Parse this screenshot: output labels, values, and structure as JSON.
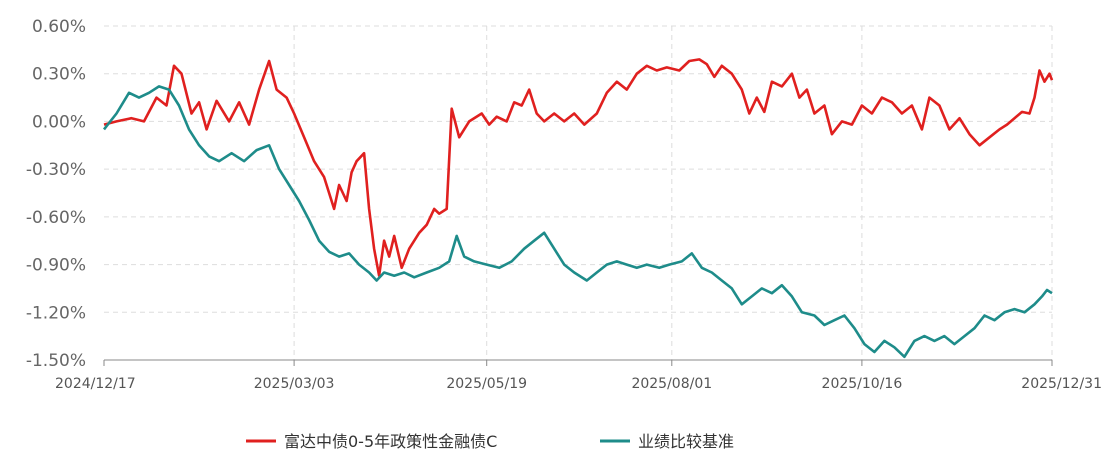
{
  "chart_data": {
    "type": "line",
    "title": "",
    "xlabel": "",
    "ylabel": "",
    "x_ticks": [
      "2024/12/17",
      "2025/03/03",
      "2025/05/19",
      "2025/08/01",
      "2025/10/16",
      "2025/12/31"
    ],
    "y_ticks": [
      "0.60%",
      "0.30%",
      "0.00%",
      "-0.30%",
      "-0.60%",
      "-0.90%",
      "-1.20%",
      "-1.50%"
    ],
    "y_tick_values": [
      0.6,
      0.3,
      0.0,
      -0.3,
      -0.6,
      -0.9,
      -1.2,
      -1.5
    ],
    "ylim": [
      -1.5,
      0.6
    ],
    "x_range": [
      "2024-12-17",
      "2025-12-31"
    ],
    "grid": true,
    "legend_position": "bottom",
    "series": [
      {
        "name": "富达中债0-5年政策性金融债C",
        "color": "#e0201f",
        "points": [
          [
            "2024-12-17",
            -0.02
          ],
          [
            "2024-12-22",
            0.0
          ],
          [
            "2024-12-28",
            0.02
          ],
          [
            "2025-01-02",
            0.0
          ],
          [
            "2025-01-07",
            0.15
          ],
          [
            "2025-01-11",
            0.1
          ],
          [
            "2025-01-14",
            0.35
          ],
          [
            "2025-01-17",
            0.3
          ],
          [
            "2025-01-21",
            0.05
          ],
          [
            "2025-01-24",
            0.12
          ],
          [
            "2025-01-27",
            -0.05
          ],
          [
            "2025-01-31",
            0.13
          ],
          [
            "2025-02-05",
            0.0
          ],
          [
            "2025-02-09",
            0.12
          ],
          [
            "2025-02-13",
            -0.02
          ],
          [
            "2025-02-17",
            0.2
          ],
          [
            "2025-02-21",
            0.38
          ],
          [
            "2025-02-24",
            0.2
          ],
          [
            "2025-02-28",
            0.15
          ],
          [
            "2025-03-03",
            0.05
          ],
          [
            "2025-03-07",
            -0.1
          ],
          [
            "2025-03-11",
            -0.25
          ],
          [
            "2025-03-15",
            -0.35
          ],
          [
            "2025-03-19",
            -0.55
          ],
          [
            "2025-03-21",
            -0.4
          ],
          [
            "2025-03-24",
            -0.5
          ],
          [
            "2025-03-26",
            -0.32
          ],
          [
            "2025-03-28",
            -0.25
          ],
          [
            "2025-03-31",
            -0.2
          ],
          [
            "2025-04-02",
            -0.55
          ],
          [
            "2025-04-04",
            -0.8
          ],
          [
            "2025-04-06",
            -0.97
          ],
          [
            "2025-04-08",
            -0.75
          ],
          [
            "2025-04-10",
            -0.85
          ],
          [
            "2025-04-12",
            -0.72
          ],
          [
            "2025-04-15",
            -0.92
          ],
          [
            "2025-04-18",
            -0.8
          ],
          [
            "2025-04-22",
            -0.7
          ],
          [
            "2025-04-25",
            -0.65
          ],
          [
            "2025-04-28",
            -0.55
          ],
          [
            "2025-04-30",
            -0.58
          ],
          [
            "2025-05-03",
            -0.55
          ],
          [
            "2025-05-05",
            0.08
          ],
          [
            "2025-05-08",
            -0.1
          ],
          [
            "2025-05-12",
            0.0
          ],
          [
            "2025-05-17",
            0.05
          ],
          [
            "2025-05-20",
            -0.02
          ],
          [
            "2025-05-23",
            0.03
          ],
          [
            "2025-05-27",
            0.0
          ],
          [
            "2025-05-30",
            0.12
          ],
          [
            "2025-06-02",
            0.1
          ],
          [
            "2025-06-05",
            0.2
          ],
          [
            "2025-06-08",
            0.05
          ],
          [
            "2025-06-11",
            0.0
          ],
          [
            "2025-06-15",
            0.05
          ],
          [
            "2025-06-19",
            0.0
          ],
          [
            "2025-06-23",
            0.05
          ],
          [
            "2025-06-27",
            -0.02
          ],
          [
            "2025-07-02",
            0.05
          ],
          [
            "2025-07-06",
            0.18
          ],
          [
            "2025-07-10",
            0.25
          ],
          [
            "2025-07-14",
            0.2
          ],
          [
            "2025-07-18",
            0.3
          ],
          [
            "2025-07-22",
            0.35
          ],
          [
            "2025-07-26",
            0.32
          ],
          [
            "2025-07-30",
            0.34
          ],
          [
            "2025-08-04",
            0.32
          ],
          [
            "2025-08-08",
            0.38
          ],
          [
            "2025-08-12",
            0.39
          ],
          [
            "2025-08-15",
            0.36
          ],
          [
            "2025-08-18",
            0.28
          ],
          [
            "2025-08-21",
            0.35
          ],
          [
            "2025-08-25",
            0.3
          ],
          [
            "2025-08-29",
            0.2
          ],
          [
            "2025-09-01",
            0.05
          ],
          [
            "2025-09-04",
            0.15
          ],
          [
            "2025-09-07",
            0.06
          ],
          [
            "2025-09-10",
            0.25
          ],
          [
            "2025-09-14",
            0.22
          ],
          [
            "2025-09-18",
            0.3
          ],
          [
            "2025-09-21",
            0.15
          ],
          [
            "2025-09-24",
            0.2
          ],
          [
            "2025-09-27",
            0.05
          ],
          [
            "2025-10-01",
            0.1
          ],
          [
            "2025-10-04",
            -0.08
          ],
          [
            "2025-10-08",
            0.0
          ],
          [
            "2025-10-12",
            -0.02
          ],
          [
            "2025-10-16",
            0.1
          ],
          [
            "2025-10-20",
            0.05
          ],
          [
            "2025-10-24",
            0.15
          ],
          [
            "2025-10-28",
            0.12
          ],
          [
            "2025-11-01",
            0.05
          ],
          [
            "2025-11-05",
            0.1
          ],
          [
            "2025-11-09",
            -0.05
          ],
          [
            "2025-11-12",
            0.15
          ],
          [
            "2025-11-16",
            0.1
          ],
          [
            "2025-11-20",
            -0.05
          ],
          [
            "2025-11-24",
            0.02
          ],
          [
            "2025-11-28",
            -0.08
          ],
          [
            "2025-12-02",
            -0.15
          ],
          [
            "2025-12-06",
            -0.1
          ],
          [
            "2025-12-10",
            -0.05
          ],
          [
            "2025-12-13",
            -0.02
          ],
          [
            "2025-12-16",
            0.02
          ],
          [
            "2025-12-19",
            0.06
          ],
          [
            "2025-12-22",
            0.05
          ],
          [
            "2025-12-24",
            0.15
          ],
          [
            "2025-12-26",
            0.32
          ],
          [
            "2025-12-28",
            0.25
          ],
          [
            "2025-12-30",
            0.3
          ],
          [
            "2025-12-31",
            0.26
          ]
        ]
      },
      {
        "name": "业绩比较基准",
        "color": "#1e8c8a",
        "points": [
          [
            "2024-12-17",
            -0.05
          ],
          [
            "2024-12-22",
            0.05
          ],
          [
            "2024-12-27",
            0.18
          ],
          [
            "2024-12-31",
            0.15
          ],
          [
            "2025-01-04",
            0.18
          ],
          [
            "2025-01-08",
            0.22
          ],
          [
            "2025-01-12",
            0.2
          ],
          [
            "2025-01-16",
            0.1
          ],
          [
            "2025-01-20",
            -0.05
          ],
          [
            "2025-01-24",
            -0.15
          ],
          [
            "2025-01-28",
            -0.22
          ],
          [
            "2025-02-01",
            -0.25
          ],
          [
            "2025-02-06",
            -0.2
          ],
          [
            "2025-02-11",
            -0.25
          ],
          [
            "2025-02-16",
            -0.18
          ],
          [
            "2025-02-21",
            -0.15
          ],
          [
            "2025-02-25",
            -0.3
          ],
          [
            "2025-03-01",
            -0.4
          ],
          [
            "2025-03-05",
            -0.5
          ],
          [
            "2025-03-09",
            -0.62
          ],
          [
            "2025-03-13",
            -0.75
          ],
          [
            "2025-03-17",
            -0.82
          ],
          [
            "2025-03-21",
            -0.85
          ],
          [
            "2025-03-25",
            -0.83
          ],
          [
            "2025-03-29",
            -0.9
          ],
          [
            "2025-04-02",
            -0.95
          ],
          [
            "2025-04-05",
            -1.0
          ],
          [
            "2025-04-08",
            -0.95
          ],
          [
            "2025-04-12",
            -0.97
          ],
          [
            "2025-04-16",
            -0.95
          ],
          [
            "2025-04-20",
            -0.98
          ],
          [
            "2025-04-25",
            -0.95
          ],
          [
            "2025-04-30",
            -0.92
          ],
          [
            "2025-05-04",
            -0.88
          ],
          [
            "2025-05-07",
            -0.72
          ],
          [
            "2025-05-10",
            -0.85
          ],
          [
            "2025-05-14",
            -0.88
          ],
          [
            "2025-05-19",
            -0.9
          ],
          [
            "2025-05-24",
            -0.92
          ],
          [
            "2025-05-29",
            -0.88
          ],
          [
            "2025-06-03",
            -0.8
          ],
          [
            "2025-06-07",
            -0.75
          ],
          [
            "2025-06-11",
            -0.7
          ],
          [
            "2025-06-15",
            -0.8
          ],
          [
            "2025-06-19",
            -0.9
          ],
          [
            "2025-06-23",
            -0.95
          ],
          [
            "2025-06-28",
            -1.0
          ],
          [
            "2025-07-02",
            -0.95
          ],
          [
            "2025-07-06",
            -0.9
          ],
          [
            "2025-07-10",
            -0.88
          ],
          [
            "2025-07-14",
            -0.9
          ],
          [
            "2025-07-18",
            -0.92
          ],
          [
            "2025-07-22",
            -0.9
          ],
          [
            "2025-07-27",
            -0.92
          ],
          [
            "2025-07-31",
            -0.9
          ],
          [
            "2025-08-05",
            -0.88
          ],
          [
            "2025-08-09",
            -0.83
          ],
          [
            "2025-08-13",
            -0.92
          ],
          [
            "2025-08-17",
            -0.95
          ],
          [
            "2025-08-21",
            -1.0
          ],
          [
            "2025-08-25",
            -1.05
          ],
          [
            "2025-08-29",
            -1.15
          ],
          [
            "2025-09-02",
            -1.1
          ],
          [
            "2025-09-06",
            -1.05
          ],
          [
            "2025-09-10",
            -1.08
          ],
          [
            "2025-09-14",
            -1.03
          ],
          [
            "2025-09-18",
            -1.1
          ],
          [
            "2025-09-22",
            -1.2
          ],
          [
            "2025-09-27",
            -1.22
          ],
          [
            "2025-10-01",
            -1.28
          ],
          [
            "2025-10-05",
            -1.25
          ],
          [
            "2025-10-09",
            -1.22
          ],
          [
            "2025-10-13",
            -1.3
          ],
          [
            "2025-10-17",
            -1.4
          ],
          [
            "2025-10-21",
            -1.45
          ],
          [
            "2025-10-25",
            -1.38
          ],
          [
            "2025-10-29",
            -1.42
          ],
          [
            "2025-11-02",
            -1.48
          ],
          [
            "2025-11-06",
            -1.38
          ],
          [
            "2025-11-10",
            -1.35
          ],
          [
            "2025-11-14",
            -1.38
          ],
          [
            "2025-11-18",
            -1.35
          ],
          [
            "2025-11-22",
            -1.4
          ],
          [
            "2025-11-26",
            -1.35
          ],
          [
            "2025-11-30",
            -1.3
          ],
          [
            "2025-12-04",
            -1.22
          ],
          [
            "2025-12-08",
            -1.25
          ],
          [
            "2025-12-12",
            -1.2
          ],
          [
            "2025-12-16",
            -1.18
          ],
          [
            "2025-12-20",
            -1.2
          ],
          [
            "2025-12-24",
            -1.15
          ],
          [
            "2025-12-27",
            -1.1
          ],
          [
            "2025-12-29",
            -1.06
          ],
          [
            "2025-12-31",
            -1.08
          ]
        ]
      }
    ]
  }
}
